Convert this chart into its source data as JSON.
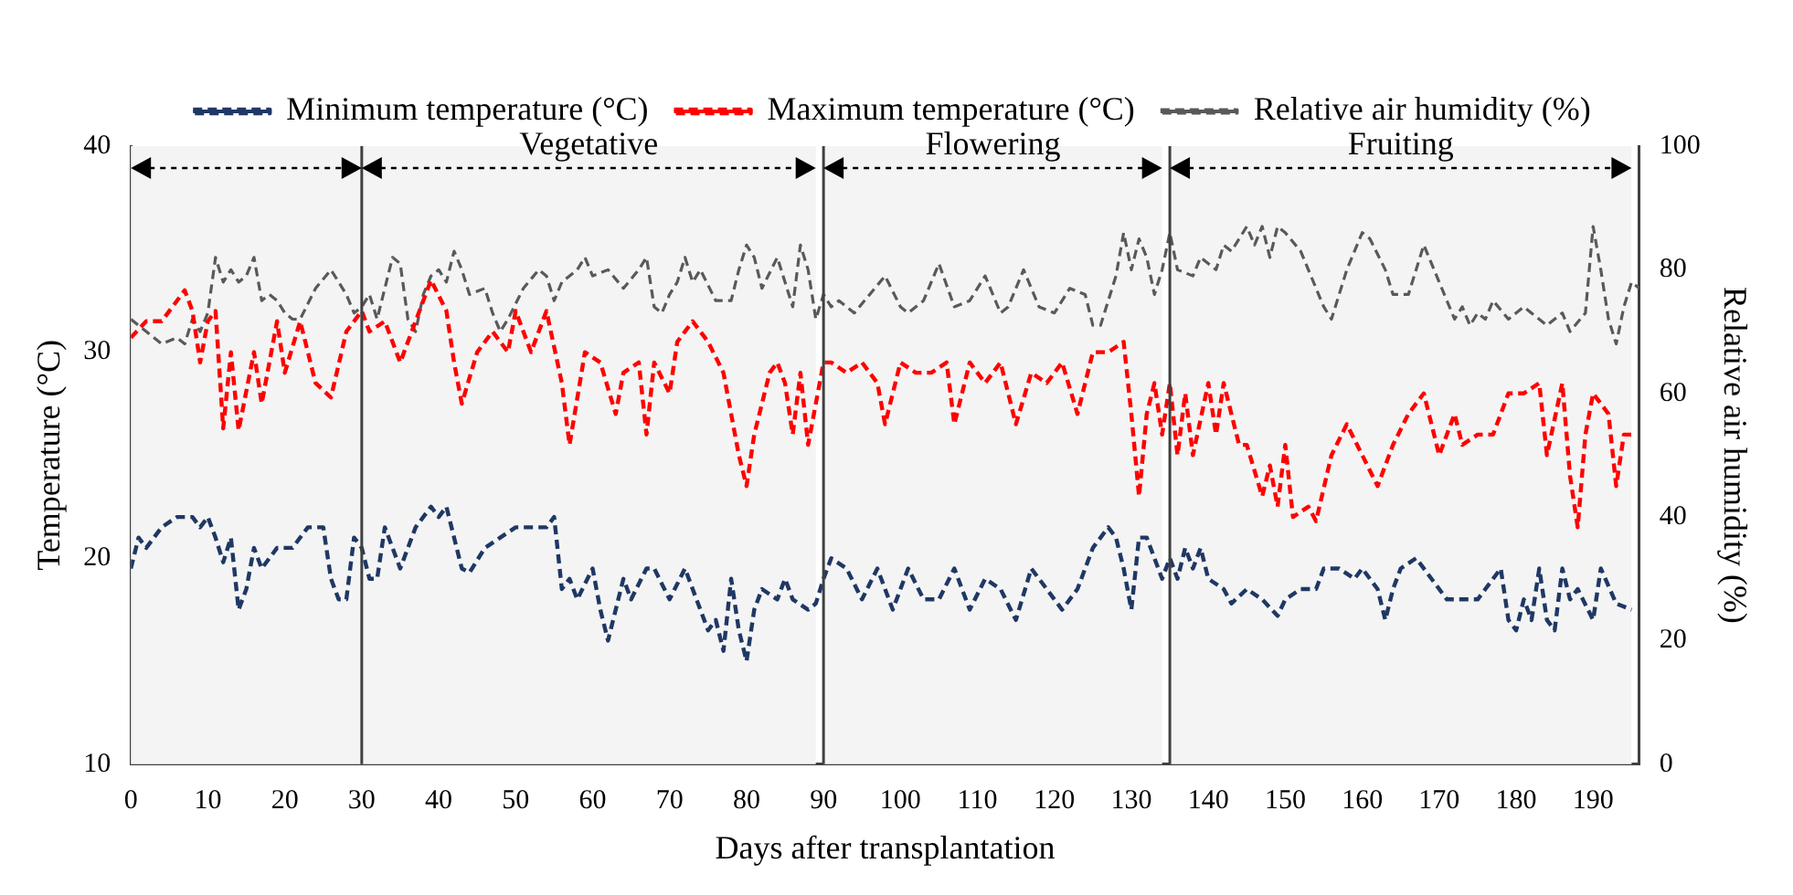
{
  "chart_data": {
    "type": "line",
    "xlabel": "Days after transplantation",
    "ylabel": "Temperature (°C)",
    "y2label": "Relative air humidity (%)",
    "xlim": [
      0,
      196
    ],
    "xticks": [
      0,
      10,
      20,
      30,
      40,
      50,
      60,
      70,
      80,
      90,
      100,
      110,
      120,
      130,
      140,
      150,
      160,
      170,
      180,
      190
    ],
    "ylim": [
      10,
      40
    ],
    "yticks": [
      10,
      20,
      30,
      40
    ],
    "y2lim": [
      0,
      100
    ],
    "y2ticks": [
      0,
      20,
      40,
      60,
      80,
      100
    ],
    "grid": false,
    "legend": "top",
    "marker": "none",
    "line_style": "dashed",
    "ref_lines": [
      {
        "axis": "x",
        "value": 30,
        "color": "#404040"
      },
      {
        "axis": "x",
        "value": 90,
        "color": "#404040"
      },
      {
        "axis": "x",
        "value": 135,
        "color": "#404040"
      }
    ],
    "bands": [
      {
        "axis": "x",
        "from": 0,
        "to": 30,
        "label": null,
        "color": "#f4f4f4"
      },
      {
        "axis": "x",
        "from": 30,
        "to": 89,
        "label": "Vegetative",
        "color": "#f4f4f4"
      },
      {
        "axis": "x",
        "from": 90,
        "to": 134,
        "label": "Flowering",
        "color": "#f4f4f4"
      },
      {
        "axis": "x",
        "from": 135,
        "to": 195,
        "label": "Fruiting",
        "color": "#f4f4f4"
      }
    ],
    "series": [
      {
        "name": "Minimum temperature (°C)",
        "color": "#1f3864",
        "x": [
          0,
          1,
          2,
          4,
          6,
          8,
          9,
          10,
          11,
          12,
          13,
          14,
          15,
          16,
          17,
          19,
          21,
          23,
          25,
          26,
          27,
          28,
          29,
          30,
          31,
          32,
          33,
          34,
          35,
          37,
          39,
          40,
          41,
          43,
          44,
          46,
          48,
          50,
          52,
          54,
          55,
          56,
          57,
          58,
          60,
          61,
          62,
          63,
          64,
          65,
          67,
          68,
          70,
          72,
          74,
          75,
          76,
          77,
          78,
          79,
          80,
          81,
          82,
          84,
          85,
          86,
          88,
          89,
          90,
          91,
          93,
          95,
          97,
          99,
          101,
          103,
          105,
          107,
          109,
          111,
          113,
          115,
          117,
          119,
          121,
          123,
          125,
          127,
          128,
          129,
          130,
          131,
          132,
          134,
          135,
          136,
          137,
          138,
          139,
          140,
          142,
          143,
          145,
          147,
          149,
          150,
          152,
          154,
          155,
          157,
          159,
          160,
          162,
          163,
          164,
          165,
          167,
          169,
          171,
          173,
          175,
          176,
          178,
          179,
          180,
          181,
          182,
          183,
          184,
          185,
          186,
          187,
          188,
          190,
          191,
          193,
          195
        ],
        "values": [
          19.5,
          21,
          20.5,
          21.5,
          22,
          22,
          21.5,
          22,
          21,
          19.8,
          21,
          17.5,
          18.5,
          20.5,
          19.5,
          20.5,
          20.5,
          21.5,
          21.5,
          19,
          18,
          18,
          21,
          20.5,
          19,
          19,
          21.5,
          20.5,
          19.5,
          21.5,
          22.5,
          22,
          22.5,
          19.5,
          19.3,
          20.5,
          21,
          21.5,
          21.5,
          21.5,
          22,
          18.5,
          19,
          18,
          19.5,
          17.5,
          16,
          17.5,
          19,
          18,
          19.5,
          19.5,
          18,
          19.5,
          17.5,
          16.5,
          17,
          15.5,
          19,
          16.5,
          15,
          17.5,
          18.5,
          18,
          19,
          18,
          17.5,
          17.8,
          19,
          20,
          19.5,
          18,
          19.5,
          17.5,
          19.5,
          18,
          18,
          19.5,
          17.5,
          19,
          18.5,
          17,
          19.5,
          18.5,
          17.5,
          18.5,
          20.5,
          21.5,
          21,
          19.5,
          17.5,
          21,
          21,
          19,
          20,
          19,
          20.5,
          19.5,
          20.5,
          19,
          18.5,
          17.8,
          18.5,
          18,
          17.2,
          18,
          18.5,
          18.5,
          19.5,
          19.5,
          19,
          19.5,
          18.5,
          17,
          18.5,
          19.5,
          20,
          19,
          18,
          18,
          18,
          18.5,
          19.5,
          17,
          16.5,
          18,
          17,
          19.5,
          17,
          16.5,
          19.5,
          18,
          18.5,
          17,
          19.5,
          17.8,
          17.5
        ]
      },
      {
        "name": "Maximum temperature (°C)",
        "color": "#ff0000",
        "x": [
          0,
          2,
          4,
          6,
          7,
          8,
          9,
          10,
          11,
          12,
          13,
          14,
          16,
          17,
          19,
          20,
          22,
          24,
          26,
          28,
          30,
          31,
          33,
          35,
          37,
          39,
          41,
          42,
          43,
          45,
          47,
          49,
          50,
          52,
          54,
          56,
          57,
          59,
          61,
          63,
          64,
          66,
          67,
          68,
          70,
          71,
          73,
          75,
          77,
          79,
          80,
          81,
          83,
          84,
          85,
          86,
          87,
          88,
          90,
          91,
          93,
          95,
          97,
          98,
          100,
          102,
          104,
          106,
          107,
          109,
          111,
          113,
          115,
          117,
          119,
          121,
          123,
          125,
          127,
          129,
          130,
          131,
          132,
          133,
          134,
          135,
          136,
          137,
          138,
          140,
          141,
          142,
          144,
          145,
          147,
          148,
          149,
          150,
          151,
          153,
          154,
          156,
          158,
          160,
          162,
          164,
          166,
          168,
          170,
          172,
          173,
          175,
          177,
          179,
          181,
          183,
          184,
          186,
          187,
          188,
          189,
          190,
          192,
          193,
          194,
          195
        ],
        "values": [
          30.7,
          31.5,
          31.5,
          32.5,
          33,
          32,
          29.5,
          31.5,
          32,
          26.3,
          30,
          26.2,
          30,
          27.5,
          31.5,
          29,
          31.5,
          28.5,
          27.8,
          31,
          32,
          31,
          31.5,
          29.5,
          31.5,
          33.5,
          32,
          29.5,
          27.5,
          30,
          31,
          30,
          32,
          30,
          32,
          28.5,
          25.5,
          30,
          29.5,
          27,
          29,
          29.5,
          26,
          29.5,
          28,
          30.5,
          31.5,
          30.5,
          29,
          25,
          23.5,
          26,
          29,
          29.5,
          28.5,
          26,
          29,
          25.5,
          29.5,
          29.5,
          29,
          29.5,
          28.5,
          26.5,
          29.5,
          29,
          29,
          29.5,
          26.5,
          29.5,
          28.5,
          29.5,
          26.5,
          29,
          28.5,
          29.5,
          27,
          30,
          30,
          30.5,
          27,
          23,
          27,
          28.5,
          26,
          28.5,
          25,
          28,
          25,
          28.5,
          26,
          28.5,
          25.5,
          25.5,
          23,
          24.5,
          22.5,
          25.5,
          22,
          22.5,
          21.8,
          25,
          26.5,
          25,
          23.5,
          25.5,
          27,
          28,
          25,
          27,
          25.5,
          26,
          26,
          28,
          28,
          28.5,
          25,
          28.5,
          24,
          21.5,
          26,
          28,
          27,
          23.5,
          26,
          26
        ]
      },
      {
        "name": "Relative air humidity (%)",
        "color": "#595959",
        "axis": "y2",
        "x": [
          0,
          2,
          4,
          6,
          7,
          8,
          9,
          10,
          11,
          12,
          13,
          14,
          15,
          16,
          17,
          18,
          19,
          20,
          21,
          22,
          24,
          26,
          27,
          28,
          29,
          30,
          31,
          32,
          33,
          34,
          35,
          36,
          37,
          38,
          39,
          40,
          41,
          42,
          43,
          44,
          46,
          47,
          48,
          49,
          51,
          53,
          54,
          55,
          56,
          58,
          59,
          60,
          62,
          64,
          66,
          67,
          68,
          69,
          70,
          71,
          72,
          73,
          74,
          76,
          78,
          79,
          80,
          81,
          82,
          84,
          86,
          87,
          88,
          89,
          90,
          91,
          92,
          94,
          96,
          98,
          100,
          101,
          103,
          105,
          107,
          109,
          111,
          113,
          114,
          116,
          118,
          120,
          122,
          124,
          125,
          126,
          128,
          129,
          130,
          131,
          132,
          133,
          134,
          135,
          136,
          138,
          139,
          141,
          142,
          143,
          145,
          146,
          147,
          148,
          149,
          150,
          152,
          153,
          154,
          155,
          156,
          158,
          160,
          161,
          163,
          164,
          166,
          168,
          170,
          172,
          173,
          174,
          175,
          176,
          177,
          179,
          181,
          183,
          184,
          186,
          187,
          189,
          190,
          191,
          192,
          193,
          194,
          195,
          196
        ],
        "values": [
          72,
          70,
          68,
          69,
          68,
          72,
          70,
          73,
          82,
          78,
          80,
          78,
          79,
          82,
          75,
          76,
          75,
          73,
          72,
          72,
          77,
          80,
          78,
          76,
          73,
          74,
          76,
          72,
          77,
          82,
          81,
          72,
          70,
          76,
          79,
          80,
          78,
          83,
          80,
          76,
          77,
          73,
          70,
          72,
          77,
          80,
          79,
          75,
          78,
          80,
          82,
          79,
          80,
          77,
          80,
          82,
          74,
          73,
          76,
          78,
          82,
          78,
          80,
          75,
          75,
          80,
          84,
          82,
          77,
          82,
          74,
          84,
          80,
          72,
          76,
          74,
          75,
          73,
          76,
          79,
          74,
          73,
          75,
          81,
          74,
          75,
          79,
          73,
          74,
          80,
          74,
          73,
          77,
          76,
          71,
          71,
          79,
          86,
          80,
          85,
          82,
          76,
          80,
          86,
          80,
          79,
          82,
          80,
          84,
          83,
          87,
          84,
          87,
          82,
          87,
          86,
          83,
          80,
          77,
          74,
          72,
          80,
          86,
          85,
          80,
          76,
          76,
          84,
          78,
          72,
          74,
          71,
          73,
          72,
          75,
          72,
          74,
          72,
          71,
          73,
          70,
          73,
          87,
          80,
          72,
          68,
          74,
          78,
          77
        ]
      }
    ]
  }
}
